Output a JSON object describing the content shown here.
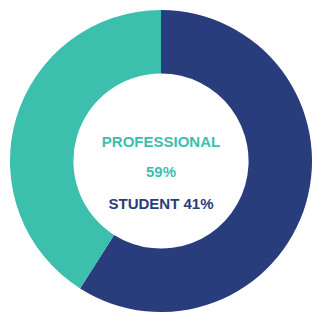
{
  "chart_data": {
    "type": "donut",
    "values": [
      59,
      41
    ],
    "colors": [
      "#293d7c",
      "#3dbfad"
    ],
    "annotations": [
      {
        "text": "PROFESSIONAL",
        "color": "#3dbfad"
      },
      {
        "text": "59%",
        "color": "#3dbfad"
      },
      {
        "text": "STUDENT 41%",
        "color": "#293d7c"
      }
    ]
  }
}
